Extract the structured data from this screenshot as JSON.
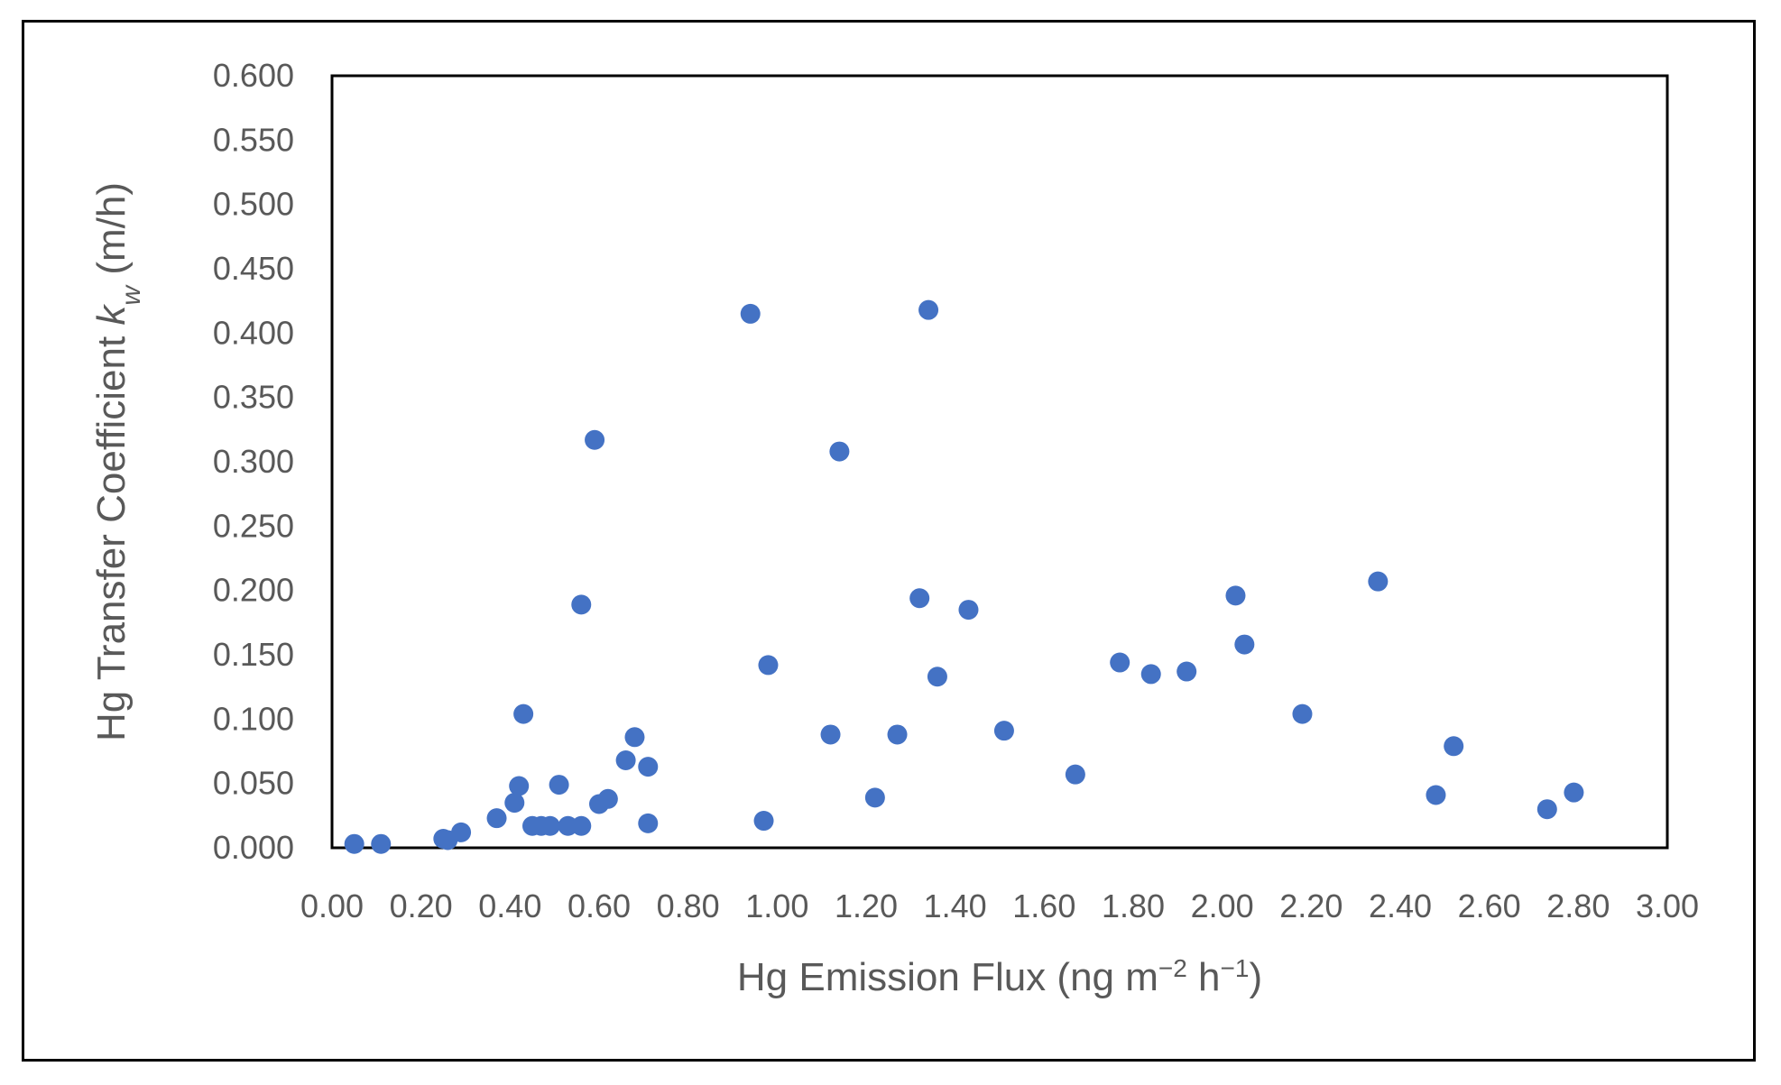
{
  "chart_data": {
    "type": "scatter",
    "title": "",
    "xlabel_parts": {
      "main": "Hg Emission Flux (ng m",
      "sup1": "−2",
      "mid": " h",
      "sup2": "−1",
      "end": ")"
    },
    "ylabel_parts": {
      "main": "Hg Transfer Coefficient ",
      "k": "k",
      "sub": "w",
      "end": " (m/h)"
    },
    "xlim": [
      0,
      3.0
    ],
    "ylim": [
      0,
      0.6
    ],
    "x_ticks": [
      "0.00",
      "0.20",
      "0.40",
      "0.60",
      "0.80",
      "1.00",
      "1.20",
      "1.40",
      "1.60",
      "1.80",
      "2.00",
      "2.20",
      "2.40",
      "2.60",
      "2.80",
      "3.00"
    ],
    "y_ticks": [
      "0.000",
      "0.050",
      "0.100",
      "0.150",
      "0.200",
      "0.250",
      "0.300",
      "0.350",
      "0.400",
      "0.450",
      "0.500",
      "0.550",
      "0.600"
    ],
    "grid": false,
    "marker_color": "#4472C4",
    "points": [
      {
        "x": 0.05,
        "y": 0.003
      },
      {
        "x": 0.11,
        "y": 0.003
      },
      {
        "x": 0.25,
        "y": 0.007
      },
      {
        "x": 0.26,
        "y": 0.006
      },
      {
        "x": 0.29,
        "y": 0.012
      },
      {
        "x": 0.37,
        "y": 0.023
      },
      {
        "x": 0.41,
        "y": 0.035
      },
      {
        "x": 0.42,
        "y": 0.048
      },
      {
        "x": 0.43,
        "y": 0.104
      },
      {
        "x": 0.45,
        "y": 0.017
      },
      {
        "x": 0.47,
        "y": 0.017
      },
      {
        "x": 0.49,
        "y": 0.017
      },
      {
        "x": 0.51,
        "y": 0.049
      },
      {
        "x": 0.53,
        "y": 0.017
      },
      {
        "x": 0.56,
        "y": 0.017
      },
      {
        "x": 0.56,
        "y": 0.189
      },
      {
        "x": 0.59,
        "y": 0.317
      },
      {
        "x": 0.6,
        "y": 0.034
      },
      {
        "x": 0.62,
        "y": 0.038
      },
      {
        "x": 0.66,
        "y": 0.068
      },
      {
        "x": 0.68,
        "y": 0.086
      },
      {
        "x": 0.71,
        "y": 0.019
      },
      {
        "x": 0.71,
        "y": 0.063
      },
      {
        "x": 0.94,
        "y": 0.415
      },
      {
        "x": 0.97,
        "y": 0.021
      },
      {
        "x": 0.98,
        "y": 0.142
      },
      {
        "x": 1.12,
        "y": 0.088
      },
      {
        "x": 1.14,
        "y": 0.308
      },
      {
        "x": 1.22,
        "y": 0.039
      },
      {
        "x": 1.27,
        "y": 0.088
      },
      {
        "x": 1.32,
        "y": 0.194
      },
      {
        "x": 1.34,
        "y": 0.418
      },
      {
        "x": 1.36,
        "y": 0.133
      },
      {
        "x": 1.43,
        "y": 0.185
      },
      {
        "x": 1.51,
        "y": 0.091
      },
      {
        "x": 1.67,
        "y": 0.057
      },
      {
        "x": 1.77,
        "y": 0.144
      },
      {
        "x": 1.84,
        "y": 0.135
      },
      {
        "x": 1.92,
        "y": 0.137
      },
      {
        "x": 2.03,
        "y": 0.196
      },
      {
        "x": 2.05,
        "y": 0.158
      },
      {
        "x": 2.18,
        "y": 0.104
      },
      {
        "x": 2.35,
        "y": 0.207
      },
      {
        "x": 2.48,
        "y": 0.041
      },
      {
        "x": 2.52,
        "y": 0.079
      },
      {
        "x": 2.73,
        "y": 0.03
      },
      {
        "x": 2.79,
        "y": 0.043
      }
    ]
  }
}
